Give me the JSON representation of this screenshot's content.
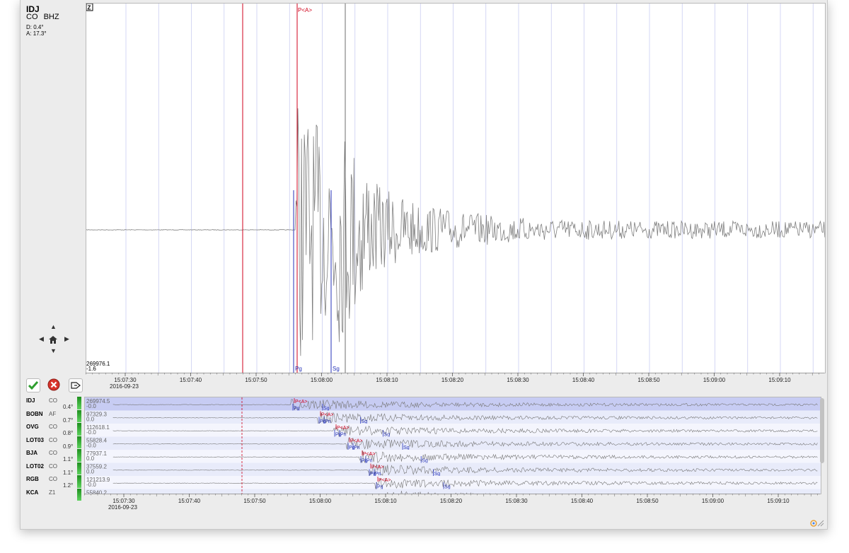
{
  "main": {
    "component_label": "Z",
    "station": {
      "code": "IDJ",
      "network": "CO",
      "channel": "BHZ",
      "distance": "D:  0.4°",
      "azimuth": "A:  17.3°"
    },
    "amplitude_top": "269976.1",
    "amplitude_bottom": "-1.6",
    "picks": {
      "arrival": "P<A>",
      "pg": "Pg",
      "sg": "Sg"
    }
  },
  "time_axis": {
    "ticks": [
      "15:07:30",
      "15:07:40",
      "15:07:50",
      "15:08:00",
      "15:08:10",
      "15:08:20",
      "15:08:30",
      "15:08:40",
      "15:08:50",
      "15:09:00",
      "15:09:10"
    ],
    "date": "2016-09-23"
  },
  "buttons": {
    "accept": "accept",
    "reject": "reject",
    "apply": "apply"
  },
  "overview": {
    "rows": [
      {
        "station": "IDJ",
        "network": "CO",
        "distance": "0.4°",
        "amp_top": "269974.5",
        "amp_bottom": "-0.0",
        "picks": [
          "P<A>",
          "Pg",
          "Sg"
        ]
      },
      {
        "station": "BOBN",
        "network": "AF",
        "distance": "0.7°",
        "amp_top": "97329.3",
        "amp_bottom": "0.0",
        "picks": [
          "P<A>",
          "Pg",
          "Pn",
          "Sg"
        ]
      },
      {
        "station": "OVG",
        "network": "CO",
        "distance": "0.8°",
        "amp_top": "112618.1",
        "amp_bottom": "-0.0",
        "picks": [
          "P<A>",
          "Pg",
          "Pn",
          "Sg"
        ]
      },
      {
        "station": "LOT03",
        "network": "CO",
        "distance": "0.9°",
        "amp_top": "55828.4",
        "amp_bottom": "-0.0",
        "picks": [
          "P<A>",
          "Pg",
          "Pn",
          "Sg"
        ]
      },
      {
        "station": "BJA",
        "network": "CO",
        "distance": "1.1°",
        "amp_top": "77937.1",
        "amp_bottom": "0.0",
        "picks": [
          "P<A>",
          "Pg",
          "Pn",
          "Sg"
        ]
      },
      {
        "station": "LOT02",
        "network": "CO",
        "distance": "1.1°",
        "amp_top": "37559.2",
        "amp_bottom": "0.0",
        "picks": [
          "P<A>",
          "Pg",
          "Pn",
          "Sg"
        ]
      },
      {
        "station": "RGB",
        "network": "CO",
        "distance": "1.2°",
        "amp_top": "121213.9",
        "amp_bottom": "-0.0",
        "picks": [
          "P<A>",
          "Pg",
          "Sg"
        ]
      },
      {
        "station": "KCA",
        "network": "Z1",
        "distance": "",
        "amp_top": "55840.2",
        "amp_bottom": "",
        "picks": []
      }
    ]
  },
  "colors": {
    "trace": "#7f7f7f",
    "pick_red": "#d0021b",
    "pick_blue": "#2432b8",
    "grid": "#c9cdf2",
    "selected_row": "#c7ccf3",
    "alt_row": "#e8ebfa",
    "accept_green": "#2f9e2f",
    "reject_red": "#d9332b"
  }
}
